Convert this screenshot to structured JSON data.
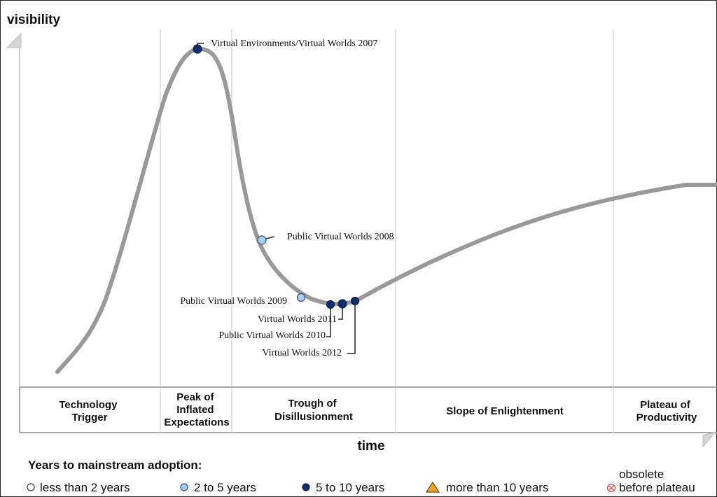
{
  "axes": {
    "y_label": "visibility",
    "x_label": "time"
  },
  "phases": [
    {
      "lines": [
        "Technology",
        "Trigger"
      ]
    },
    {
      "lines": [
        "Peak of",
        "Inflated",
        "Expectations"
      ]
    },
    {
      "lines": [
        "Trough of",
        "Disillusionment"
      ]
    },
    {
      "lines": [
        "Slope of Enlightenment"
      ]
    },
    {
      "lines": [
        "Plateau of",
        "Productivity"
      ]
    }
  ],
  "technologies": [
    {
      "label": "Virtual Environments/Virtual Worlds 2007",
      "category": "5to10"
    },
    {
      "label": "Public Virtual Worlds 2008",
      "category": "2to5"
    },
    {
      "label": "Public Virtual Worlds 2009",
      "category": "2to5"
    },
    {
      "label": "Virtual Worlds 2011",
      "category": "5to10"
    },
    {
      "label": "Public Virtual Worlds 2010",
      "category": "5to10"
    },
    {
      "label": "Virtual Worlds 2012",
      "category": "5to10"
    }
  ],
  "legend": {
    "title": "Years to mainstream adoption:",
    "items": [
      {
        "text": "less than 2 years",
        "marker": "circle-white"
      },
      {
        "text": "2 to 5 years",
        "marker": "circle-light-blue"
      },
      {
        "text": "5 to 10 years",
        "marker": "circle-dark-blue"
      },
      {
        "text": "more than 10 years",
        "marker": "triangle-orange"
      },
      {
        "text_lines": [
          "obsolete",
          "before plateau"
        ],
        "marker": "circle-cross-red"
      }
    ]
  },
  "colors": {
    "curve": "#999999",
    "divider": "#d9d9d9",
    "less_than_2": "#ffffff",
    "two_to_five": "#a9cfee",
    "five_to_ten": "#0d2f6e",
    "more_than_10": "#f4a42c",
    "obsolete": "#d9534f"
  }
}
